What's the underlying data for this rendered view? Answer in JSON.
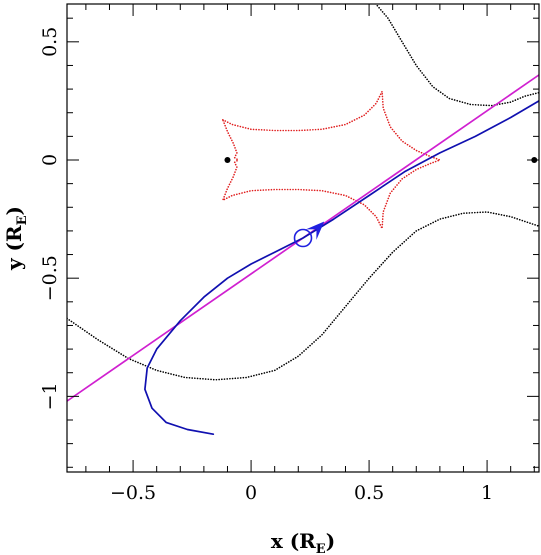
{
  "chart_data": {
    "type": "line",
    "title": "",
    "xlabel": "x (R",
    "xlabel_sub": "E",
    "xlabel_close": ")",
    "ylabel": "y (R",
    "ylabel_sub": "E",
    "ylabel_close": ")",
    "xlim": [
      -0.78,
      1.22
    ],
    "ylim": [
      -1.32,
      0.66
    ],
    "x_ticks": [
      {
        "value": -0.5,
        "label": "−0.5"
      },
      {
        "value": 0,
        "label": "0"
      },
      {
        "value": 0.5,
        "label": "0.5"
      },
      {
        "value": 1,
        "label": "1"
      }
    ],
    "y_ticks": [
      {
        "value": -1,
        "label": "−1"
      },
      {
        "value": -0.5,
        "label": "−0.5"
      },
      {
        "value": 0,
        "label": "0"
      },
      {
        "value": 0.5,
        "label": "0.5"
      }
    ],
    "grid": false,
    "colors": {
      "caustic": "#e02020",
      "critical_curve": "#000000",
      "model_trajectory": "#1010b0",
      "linear_trajectory": "#d020d0",
      "source_marker": "#2020e0"
    },
    "lenses": [
      {
        "x": -0.1,
        "y": 0
      },
      {
        "x": 1.2,
        "y": 0
      }
    ],
    "source": {
      "x": 0.22,
      "y": -0.33
    },
    "arrow": {
      "x": 0.27,
      "y": -0.3,
      "dx": 0.04,
      "dy": 0.04
    },
    "series": [
      {
        "kind": "critical_curve",
        "style": "dotted",
        "points": [
          [
            0.52,
            0.67
          ],
          [
            0.58,
            0.6
          ],
          [
            0.64,
            0.5
          ],
          [
            0.7,
            0.4
          ],
          [
            0.77,
            0.31
          ],
          [
            0.84,
            0.26
          ],
          [
            0.93,
            0.235
          ],
          [
            1.02,
            0.23
          ],
          [
            1.1,
            0.245
          ],
          [
            1.16,
            0.27
          ],
          [
            1.22,
            0.285
          ]
        ]
      },
      {
        "kind": "critical_curve",
        "style": "dotted",
        "points": [
          [
            -0.78,
            -0.67
          ],
          [
            -0.65,
            -0.76
          ],
          [
            -0.52,
            -0.84
          ],
          [
            -0.4,
            -0.89
          ],
          [
            -0.28,
            -0.92
          ],
          [
            -0.15,
            -0.93
          ],
          [
            -0.02,
            -0.92
          ],
          [
            0.1,
            -0.89
          ],
          [
            0.2,
            -0.83
          ],
          [
            0.3,
            -0.74
          ],
          [
            0.4,
            -0.62
          ],
          [
            0.5,
            -0.5
          ],
          [
            0.6,
            -0.39
          ],
          [
            0.7,
            -0.3
          ],
          [
            0.8,
            -0.25
          ],
          [
            0.9,
            -0.225
          ],
          [
            1.0,
            -0.22
          ],
          [
            1.1,
            -0.24
          ],
          [
            1.22,
            -0.28
          ]
        ]
      },
      {
        "kind": "caustic",
        "style": "dotted",
        "points": [
          [
            -0.12,
            0.17
          ],
          [
            -0.08,
            0.15
          ],
          [
            0.0,
            0.13
          ],
          [
            0.1,
            0.125
          ],
          [
            0.2,
            0.125
          ],
          [
            0.3,
            0.13
          ],
          [
            0.4,
            0.15
          ],
          [
            0.48,
            0.19
          ],
          [
            0.53,
            0.24
          ],
          [
            0.555,
            0.29
          ],
          [
            0.56,
            0.22
          ],
          [
            0.59,
            0.14
          ],
          [
            0.64,
            0.08
          ],
          [
            0.7,
            0.04
          ],
          [
            0.76,
            0.015
          ],
          [
            0.8,
            0.0
          ],
          [
            0.76,
            -0.015
          ],
          [
            0.7,
            -0.04
          ],
          [
            0.64,
            -0.08
          ],
          [
            0.59,
            -0.14
          ],
          [
            0.56,
            -0.22
          ],
          [
            0.555,
            -0.29
          ],
          [
            0.53,
            -0.24
          ],
          [
            0.48,
            -0.19
          ],
          [
            0.4,
            -0.15
          ],
          [
            0.3,
            -0.13
          ],
          [
            0.2,
            -0.125
          ],
          [
            0.1,
            -0.125
          ],
          [
            0.0,
            -0.13
          ],
          [
            -0.08,
            -0.15
          ],
          [
            -0.12,
            -0.17
          ],
          [
            -0.1,
            -0.12
          ],
          [
            -0.075,
            -0.07
          ],
          [
            -0.06,
            -0.03
          ],
          [
            -0.07,
            -0.01
          ],
          [
            -0.055,
            0.0
          ],
          [
            -0.07,
            0.01
          ],
          [
            -0.06,
            0.03
          ],
          [
            -0.075,
            0.07
          ],
          [
            -0.1,
            0.12
          ],
          [
            -0.12,
            0.17
          ]
        ]
      },
      {
        "kind": "linear_trajectory",
        "style": "solid",
        "points": [
          [
            -0.78,
            -1.02
          ],
          [
            1.22,
            0.36
          ]
        ]
      },
      {
        "kind": "model_trajectory",
        "style": "solid",
        "points": [
          [
            -0.16,
            -1.16
          ],
          [
            -0.27,
            -1.14
          ],
          [
            -0.36,
            -1.11
          ],
          [
            -0.42,
            -1.05
          ],
          [
            -0.45,
            -0.97
          ],
          [
            -0.44,
            -0.88
          ],
          [
            -0.4,
            -0.8
          ],
          [
            -0.3,
            -0.68
          ],
          [
            -0.2,
            -0.58
          ],
          [
            -0.1,
            -0.5
          ],
          [
            0.0,
            -0.44
          ],
          [
            0.1,
            -0.39
          ],
          [
            0.22,
            -0.33
          ],
          [
            0.35,
            -0.25
          ],
          [
            0.5,
            -0.15
          ],
          [
            0.65,
            -0.05
          ],
          [
            0.8,
            0.03
          ],
          [
            0.95,
            0.1
          ],
          [
            1.1,
            0.18
          ],
          [
            1.22,
            0.25
          ]
        ]
      }
    ]
  }
}
